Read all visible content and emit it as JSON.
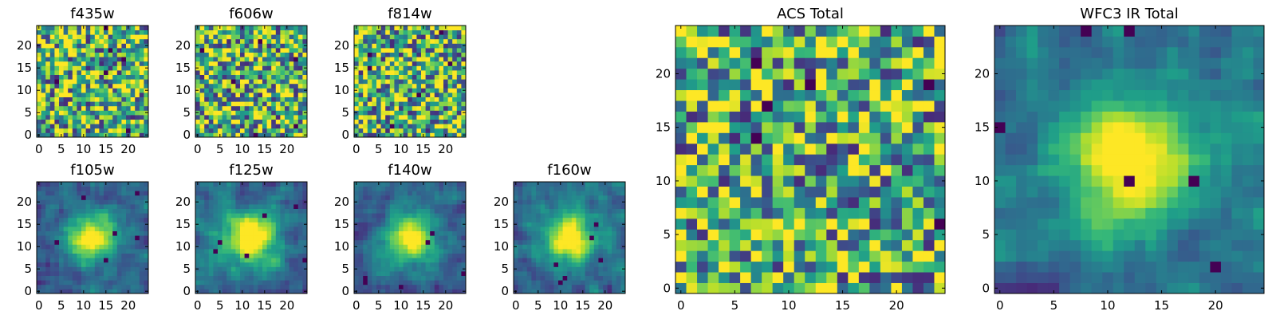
{
  "chart_data": [
    {
      "type": "heatmap",
      "title": "f435w",
      "grid_size": 25,
      "xticks": [
        0,
        5,
        10,
        15,
        20
      ],
      "yticks": [
        0,
        5,
        10,
        15,
        20
      ],
      "xlim": [
        -0.5,
        24.5
      ],
      "ylim": [
        -0.5,
        24.5
      ],
      "colormap": "viridis",
      "pattern": "noise",
      "seed": 11
    },
    {
      "type": "heatmap",
      "title": "f606w",
      "grid_size": 25,
      "xticks": [
        0,
        5,
        10,
        15,
        20
      ],
      "yticks": [
        0,
        5,
        10,
        15,
        20
      ],
      "xlim": [
        -0.5,
        24.5
      ],
      "ylim": [
        -0.5,
        24.5
      ],
      "colormap": "viridis",
      "pattern": "noise",
      "seed": 23
    },
    {
      "type": "heatmap",
      "title": "f814w",
      "grid_size": 25,
      "xticks": [
        0,
        5,
        10,
        15,
        20
      ],
      "yticks": [
        0,
        5,
        10,
        15,
        20
      ],
      "xlim": [
        -0.5,
        24.5
      ],
      "ylim": [
        -0.5,
        24.5
      ],
      "colormap": "viridis",
      "pattern": "noise",
      "seed": 37
    },
    {
      "type": "heatmap",
      "title": "f105w",
      "grid_size": 25,
      "xticks": [
        0,
        5,
        10,
        15,
        20
      ],
      "yticks": [
        0,
        5,
        10,
        15,
        20
      ],
      "xlim": [
        -0.5,
        24.5
      ],
      "ylim": [
        -0.5,
        24.5
      ],
      "colormap": "viridis",
      "pattern": "smooth-source",
      "seed": 41
    },
    {
      "type": "heatmap",
      "title": "f125w",
      "grid_size": 25,
      "xticks": [
        0,
        5,
        10,
        15,
        20
      ],
      "yticks": [
        0,
        5,
        10,
        15,
        20
      ],
      "xlim": [
        -0.5,
        24.5
      ],
      "ylim": [
        -0.5,
        24.5
      ],
      "colormap": "viridis",
      "pattern": "smooth-source",
      "seed": 53
    },
    {
      "type": "heatmap",
      "title": "f140w",
      "grid_size": 25,
      "xticks": [
        0,
        5,
        10,
        15,
        20
      ],
      "yticks": [
        0,
        5,
        10,
        15,
        20
      ],
      "xlim": [
        -0.5,
        24.5
      ],
      "ylim": [
        -0.5,
        24.5
      ],
      "colormap": "viridis",
      "pattern": "smooth-source",
      "seed": 67
    },
    {
      "type": "heatmap",
      "title": "f160w",
      "grid_size": 25,
      "xticks": [
        0,
        5,
        10,
        15,
        20
      ],
      "yticks": [
        0,
        5,
        10,
        15,
        20
      ],
      "xlim": [
        -0.5,
        24.5
      ],
      "ylim": [
        -0.5,
        24.5
      ],
      "colormap": "viridis",
      "pattern": "smooth-source",
      "seed": 79
    },
    {
      "type": "heatmap",
      "title": "ACS Total",
      "grid_size": 25,
      "xticks": [
        0,
        5,
        10,
        15,
        20
      ],
      "yticks": [
        0,
        5,
        10,
        15,
        20
      ],
      "xlim": [
        -0.5,
        24.5
      ],
      "ylim": [
        -0.5,
        24.5
      ],
      "colormap": "viridis",
      "pattern": "noise",
      "seed": 83
    },
    {
      "type": "heatmap",
      "title": "WFC3 IR Total",
      "grid_size": 25,
      "xticks": [
        0,
        5,
        10,
        15,
        20
      ],
      "yticks": [
        0,
        5,
        10,
        15,
        20
      ],
      "xlim": [
        -0.5,
        24.5
      ],
      "ylim": [
        -0.5,
        24.5
      ],
      "colormap": "viridis",
      "pattern": "smooth-source",
      "seed": 97
    }
  ]
}
